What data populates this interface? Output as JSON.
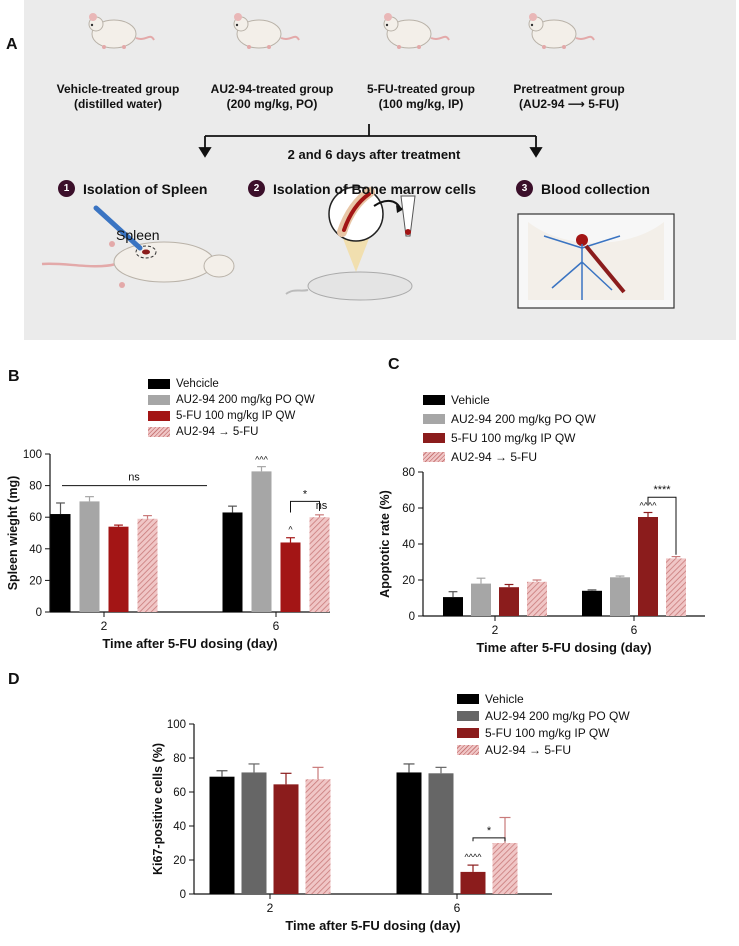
{
  "scheme": {
    "letter": "A",
    "groups": [
      {
        "line1": "Vehicle-treated group",
        "line2": "(distilled water)"
      },
      {
        "line1": "AU2-94-treated group",
        "line2": "(200 mg/kg, PO)"
      },
      {
        "line1": "5-FU-treated group",
        "line2": "(100 mg/kg, IP)"
      },
      {
        "line1": "Pretreatment group",
        "line2": "(AU2-94 ⟶ 5-FU)"
      }
    ],
    "timing": "2 and 6 days after treatment",
    "steps": [
      {
        "num": "1",
        "label": "Isolation of Spleen"
      },
      {
        "num": "2",
        "label": "Isolation of Bone marrow cells"
      },
      {
        "num": "3",
        "label": "Blood collection"
      }
    ],
    "spleen_label": "Spleen"
  },
  "colors": {
    "vehicle": "#000000",
    "au294_light": "#a6a6a6",
    "au294_dark": "#666666",
    "fu": "#a31515",
    "fu_dark": "#8b1c1c",
    "combo": "#f0c6c6",
    "combo_stripe": "#c97a7a"
  },
  "chart_data": [
    {
      "letter": "B",
      "type": "bar",
      "categories": [
        "2",
        "6"
      ],
      "xlabel": "Time after 5-FU dosing (day)",
      "ylabel": "Spleen wieght (mg)",
      "ylim": [
        0,
        100
      ],
      "yticks": [
        "0",
        "20",
        "40",
        "60",
        "80",
        "100"
      ],
      "series": [
        {
          "name": "Vehcicle",
          "values": [
            62,
            63
          ],
          "errors": [
            7,
            4
          ]
        },
        {
          "name": "AU2-94 200 mg/kg PO QW",
          "values": [
            70,
            89
          ],
          "errors": [
            3,
            3
          ]
        },
        {
          "name": "5-FU 100 mg/kg IP QW",
          "values": [
            54,
            44
          ],
          "errors": [
            1,
            3
          ]
        },
        {
          "name": "AU2-94 → 5-FU",
          "values": [
            59,
            60
          ],
          "errors": [
            2,
            1.5
          ]
        }
      ],
      "annotations": {
        "ns_span": "ns",
        "star": "*",
        "ns_pair": "ns",
        "au_mark": "^^^",
        "fu_mark": "^"
      }
    },
    {
      "letter": "C",
      "type": "bar",
      "categories": [
        "2",
        "6"
      ],
      "xlabel": "Time after 5-FU dosing (day)",
      "ylabel": "Apoptotic rate (%)",
      "ylim": [
        0,
        80
      ],
      "yticks": [
        "0",
        "20",
        "40",
        "60",
        "80"
      ],
      "series": [
        {
          "name": "Vehicle",
          "values": [
            10.5,
            14
          ],
          "errors": [
            3,
            0.5
          ]
        },
        {
          "name": "AU2-94 200 mg/kg PO QW",
          "values": [
            18,
            21.5
          ],
          "errors": [
            3,
            0.7
          ]
        },
        {
          "name": "5-FU 100 mg/kg IP QW",
          "values": [
            16,
            55
          ],
          "errors": [
            1.5,
            2.5
          ]
        },
        {
          "name": "AU2-94 → 5-FU",
          "values": [
            19,
            32
          ],
          "errors": [
            1,
            1
          ]
        }
      ],
      "annotations": {
        "star": "****",
        "fu_mark": "^^^^"
      }
    },
    {
      "letter": "D",
      "type": "bar",
      "categories": [
        "2",
        "6"
      ],
      "xlabel": "Time after 5-FU dosing (day)",
      "ylabel": "Ki67-positive cells (%)",
      "ylim": [
        0,
        100
      ],
      "yticks": [
        "0",
        "20",
        "40",
        "60",
        "80",
        "100"
      ],
      "series": [
        {
          "name": "Vehicle",
          "values": [
            69,
            71.5
          ],
          "errors": [
            3.5,
            5
          ]
        },
        {
          "name": "AU2-94 200 mg/kg PO QW",
          "values": [
            71.5,
            71
          ],
          "errors": [
            5,
            3.5
          ]
        },
        {
          "name": "5-FU 100 mg/kg IP QW",
          "values": [
            64.5,
            13
          ],
          "errors": [
            6.5,
            4
          ]
        },
        {
          "name": "AU2-94 → 5-FU",
          "values": [
            67.5,
            30
          ],
          "errors": [
            7,
            15
          ]
        }
      ],
      "annotations": {
        "star": "*",
        "fu_mark": "^^^^"
      }
    }
  ]
}
